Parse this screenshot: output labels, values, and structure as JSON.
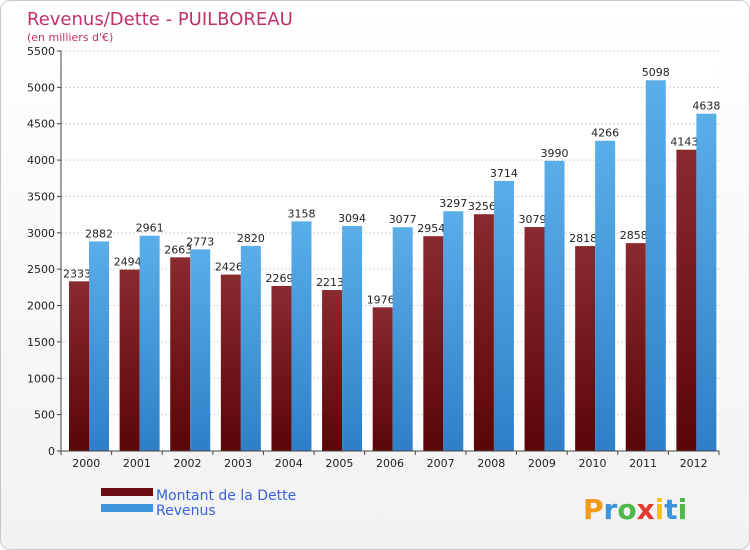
{
  "chart_data": {
    "type": "bar",
    "title": "Revenus/Dette - PUILBOREAU",
    "subtitle": "(en milliers d'€)",
    "categories": [
      "2000",
      "2001",
      "2002",
      "2003",
      "2004",
      "2005",
      "2006",
      "2007",
      "2008",
      "2009",
      "2010",
      "2011",
      "2012"
    ],
    "series": [
      {
        "name": "Montant de la Dette",
        "color": "#7a1418",
        "values": [
          2333,
          2494,
          2663,
          2426,
          2269,
          2213,
          1976,
          2954,
          3256,
          3079,
          2818,
          2858,
          4143
        ]
      },
      {
        "name": "Revenus",
        "color": "#3d94dc",
        "values": [
          2882,
          2961,
          2773,
          2820,
          3158,
          3094,
          3077,
          3297,
          3714,
          3990,
          4266,
          5098,
          4638
        ]
      }
    ],
    "ylim": [
      0,
      5500
    ],
    "yticks": [
      0,
      500,
      1000,
      1500,
      2000,
      2500,
      3000,
      3500,
      4000,
      4500,
      5000,
      5500
    ],
    "grid": true,
    "legend": "bottom-left"
  },
  "brand": {
    "text": "Proxiti",
    "letters": [
      "P",
      "r",
      "o",
      "x",
      "i",
      "t",
      "i"
    ],
    "colors": [
      "#f29a1a",
      "#3d94dc",
      "#4fb848",
      "#e33b2d",
      "#f2c21a",
      "#3d94dc",
      "#4fb848"
    ]
  }
}
